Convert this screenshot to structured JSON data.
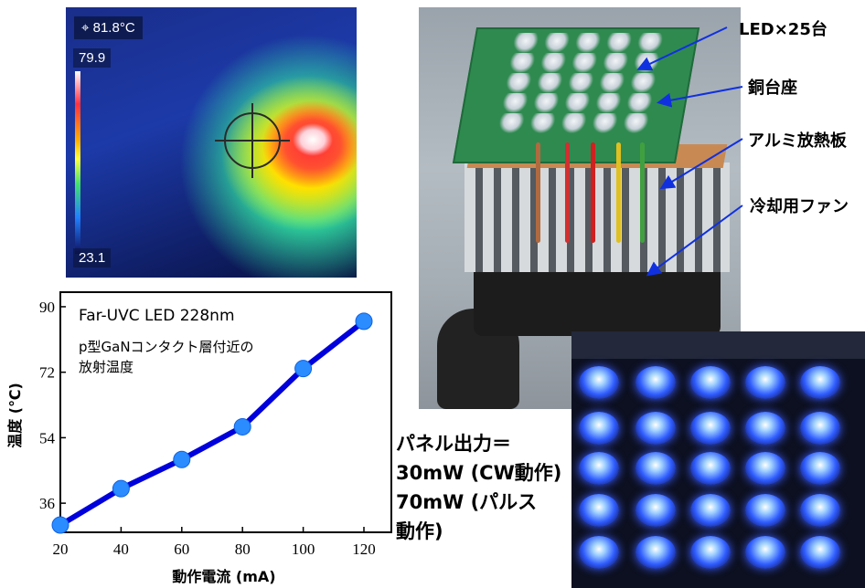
{
  "thermal": {
    "spot_temp": "81.8°C",
    "scale_max": "79.9",
    "scale_min": "23.1",
    "crosshair_icon": "crosshair-icon"
  },
  "device_labels": {
    "led": "LED×25台",
    "copper": "銅台座",
    "aluminum": "アルミ放熱板",
    "fan": "冷却用ファン"
  },
  "panel_output": {
    "line1": "パネル出力＝",
    "line2": "30mW (CW動作)",
    "line3": "70mW (パルス",
    "line4": "動作)"
  },
  "chart_data": {
    "type": "line",
    "title": "Far-UVC LED 228nm",
    "subtitle_line1": "p型GaNコンタクト層付近の",
    "subtitle_line2": "放射温度",
    "xlabel": "動作電流 (mA)",
    "ylabel": "温度 (℃)",
    "x": [
      20,
      40,
      60,
      80,
      100,
      120
    ],
    "y": [
      30,
      40,
      48,
      57,
      73,
      86
    ],
    "xticks": [
      "20",
      "40",
      "60",
      "80",
      "100",
      "120"
    ],
    "yticks": [
      "36",
      "54",
      "72",
      "90"
    ],
    "xlim": [
      20,
      120
    ],
    "ylim": [
      28,
      94
    ],
    "color": "#0000dd"
  }
}
